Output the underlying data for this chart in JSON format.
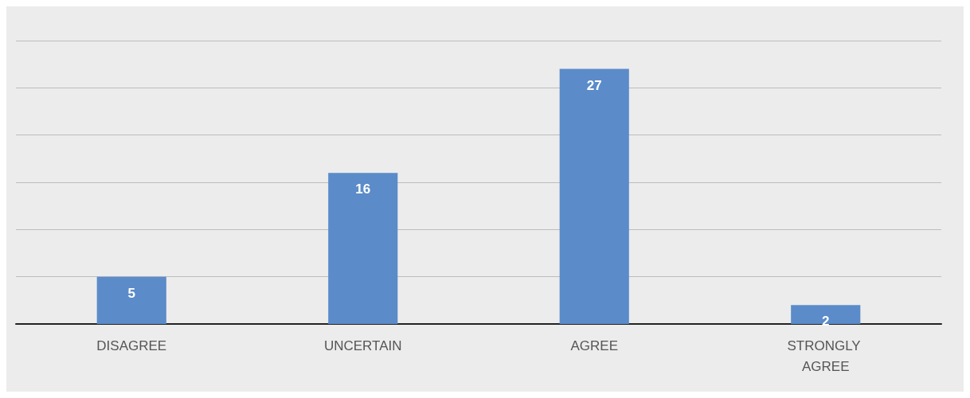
{
  "chart_data": {
    "type": "bar",
    "categories": [
      "DISAGREE",
      "UNCERTAIN",
      "AGREE",
      "STRONGLY AGREE"
    ],
    "values": [
      5,
      16,
      27,
      2
    ],
    "color": "#5b8bc9",
    "ylim": [
      0,
      30
    ],
    "yticks": [
      {
        "value": 0,
        "label": null
      },
      {
        "value": 5,
        "label": null
      },
      {
        "value": 10,
        "label": null
      },
      {
        "value": 15,
        "label": null
      },
      {
        "value": 20,
        "label": null
      },
      {
        "value": 25,
        "label": null
      },
      {
        "value": 30,
        "label": null
      }
    ],
    "grid": "y",
    "tick_labels": "x",
    "data_labels": true
  }
}
